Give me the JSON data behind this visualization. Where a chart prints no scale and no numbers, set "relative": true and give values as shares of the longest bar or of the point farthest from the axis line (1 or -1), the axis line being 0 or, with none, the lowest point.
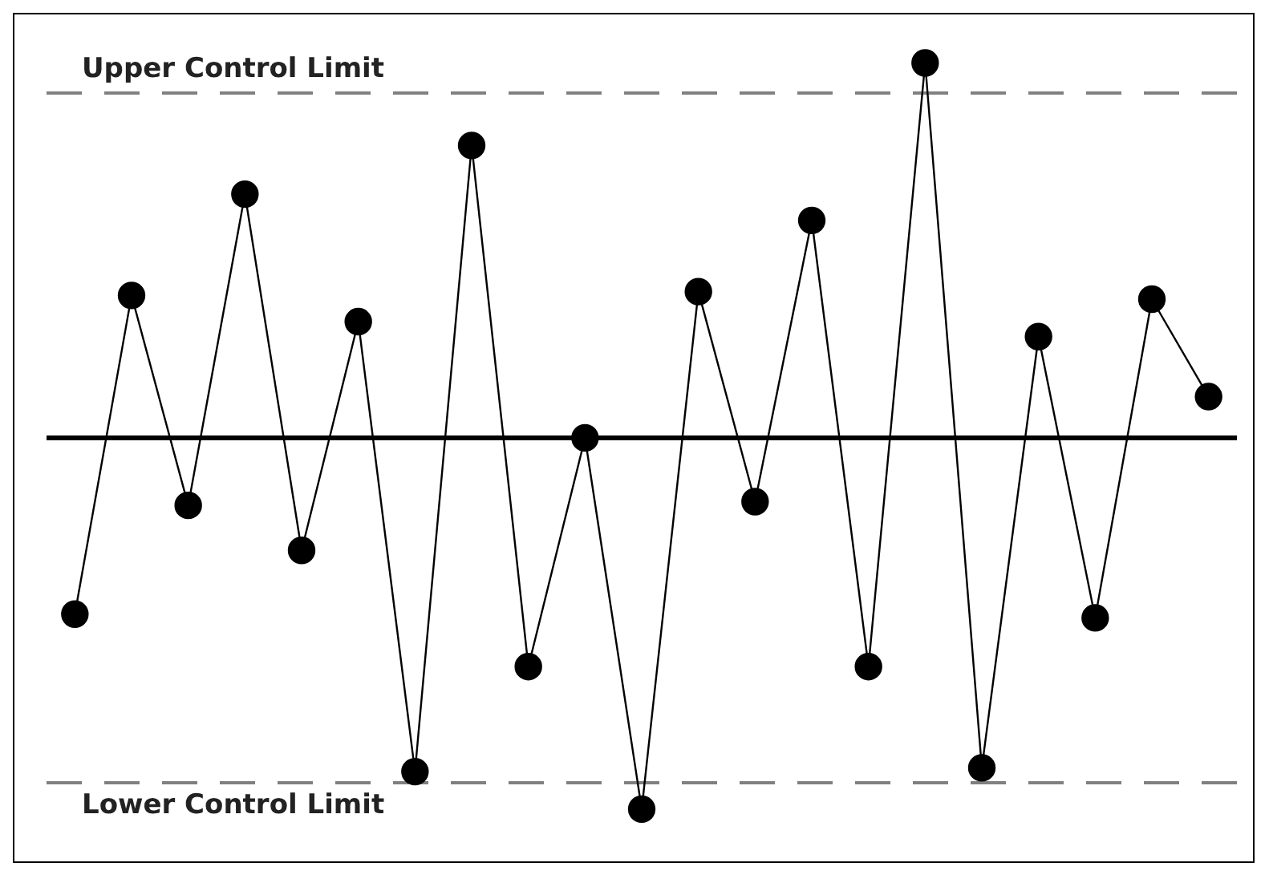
{
  "chart_data": {
    "type": "line",
    "relative": true,
    "categories": [
      null,
      null,
      null,
      null,
      null,
      null,
      null,
      null,
      null,
      null,
      null,
      null,
      null,
      null,
      null,
      null,
      null,
      null,
      null,
      null,
      null
    ],
    "series": [
      {
        "color": "#000000",
        "values": [
          -0.47,
          0.38,
          -0.18,
          0.65,
          -0.3,
          0.31,
          -0.89,
          0.78,
          -0.61,
          0,
          -0.99,
          0.39,
          -0.17,
          0.58,
          -0.61,
          1,
          -0.88,
          0.27,
          -0.48,
          0.37,
          0.11
        ]
      }
    ],
    "marker": "circle",
    "ref_lines": [
      {
        "axis": "y",
        "value": 0.92,
        "label": "Upper Control Limit",
        "color": "#808080",
        "line_style": "dashed"
      },
      {
        "axis": "y",
        "value": 0,
        "label": null,
        "color": "#000000",
        "line_style": "solid"
      },
      {
        "axis": "y",
        "value": -0.92,
        "label": "Lower Control Limit",
        "color": "#808080",
        "line_style": "dashed"
      }
    ],
    "line_style": "solid"
  }
}
